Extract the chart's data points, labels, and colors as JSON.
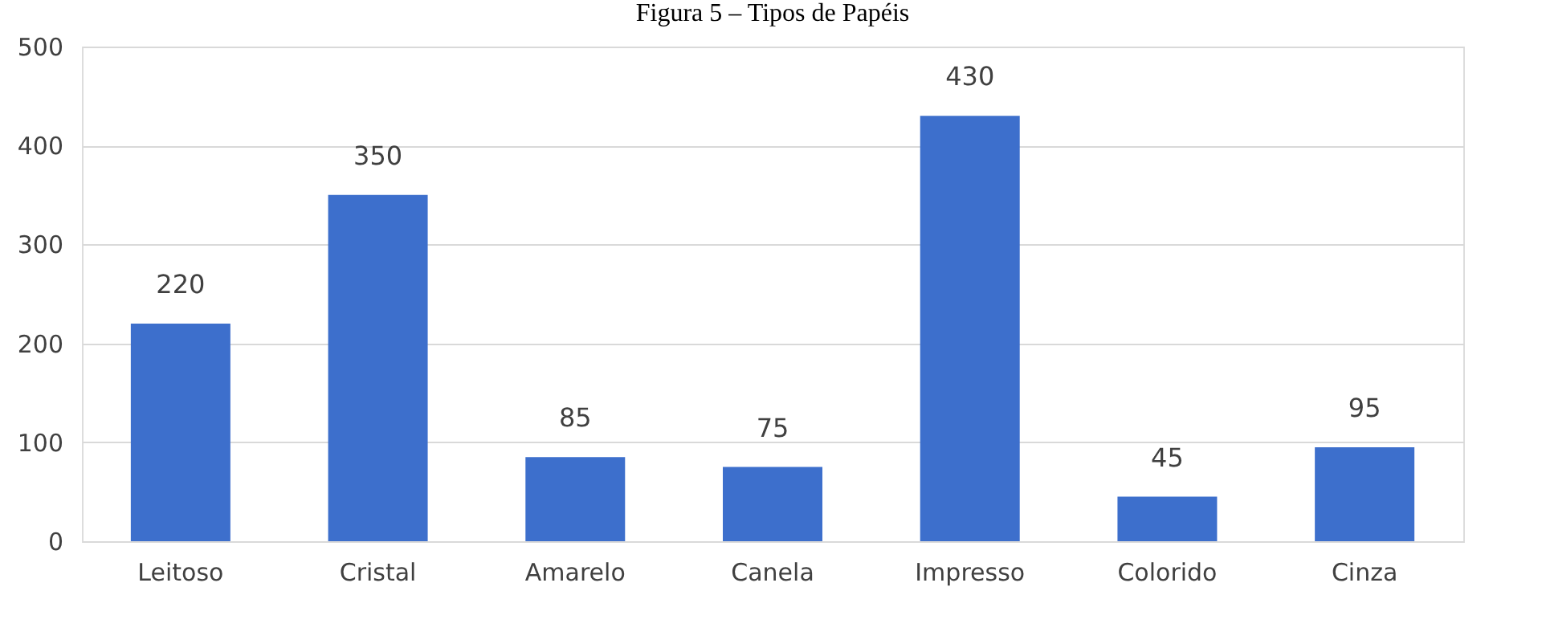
{
  "chart_data": {
    "type": "bar",
    "title": "Figura 5 – Tipos de Papéis",
    "categories": [
      "Leitoso",
      "Cristal",
      "Amarelo",
      "Canela",
      "Impresso",
      "Colorido",
      "Cinza"
    ],
    "values": [
      220,
      350,
      85,
      75,
      430,
      45,
      95
    ],
    "color": "#3d6fcc",
    "ylim": [
      0,
      500
    ],
    "yticks": [
      0,
      100,
      200,
      300,
      400,
      500
    ],
    "grid": "y",
    "data_labels": true
  }
}
